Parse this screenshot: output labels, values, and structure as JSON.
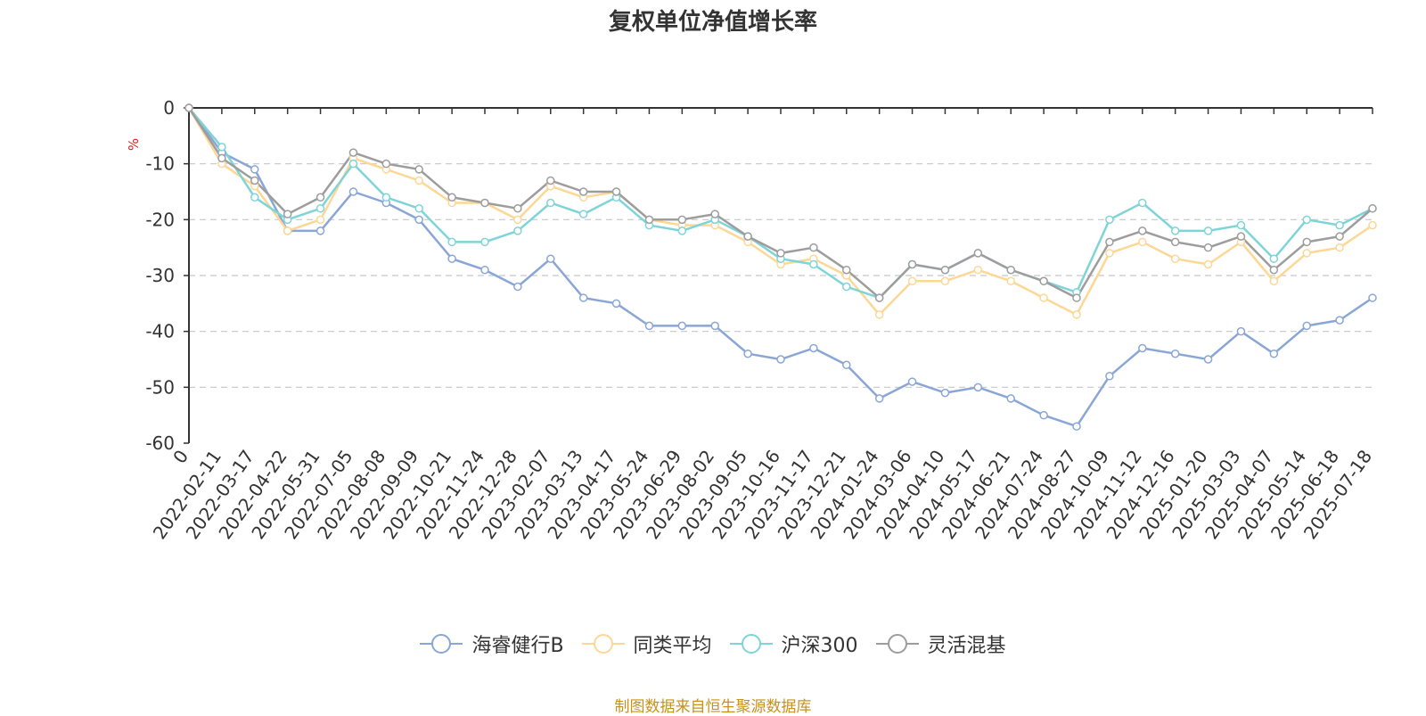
{
  "chart_data": {
    "type": "line",
    "title": "复权单位净值增长率",
    "ylabel": "%",
    "ylim": [
      -60,
      0
    ],
    "yticks": [
      0,
      -10,
      -20,
      -30,
      -40,
      -50,
      -60
    ],
    "grid": true,
    "legend_position": "bottom",
    "x": [
      "0",
      "2022-02-11",
      "2022-03-17",
      "2022-04-22",
      "2022-05-31",
      "2022-07-05",
      "2022-08-08",
      "2022-09-09",
      "2022-10-21",
      "2022-11-24",
      "2022-12-28",
      "2023-02-07",
      "2023-03-13",
      "2023-04-17",
      "2023-05-24",
      "2023-06-29",
      "2023-08-02",
      "2023-09-05",
      "2023-10-16",
      "2023-11-17",
      "2023-12-21",
      "2024-01-24",
      "2024-03-06",
      "2024-04-10",
      "2024-05-17",
      "2024-06-21",
      "2024-07-24",
      "2024-08-27",
      "2024-10-09",
      "2024-11-12",
      "2024-12-16",
      "2025-01-20",
      "2025-03-03",
      "2025-04-07",
      "2025-05-14",
      "2025-06-18",
      "2025-07-18"
    ],
    "series": [
      {
        "name": "海睿健行B",
        "color": "#8aa6d6",
        "values": [
          0,
          -8,
          -11,
          -22,
          -22,
          -15,
          -17,
          -20,
          -27,
          -29,
          -32,
          -27,
          -34,
          -35,
          -39,
          -39,
          -39,
          -44,
          -45,
          -43,
          -46,
          -52,
          -49,
          -51,
          -50,
          -52,
          -55,
          -57,
          -48,
          -43,
          -44,
          -45,
          -40,
          -44,
          -39,
          -38,
          -34
        ]
      },
      {
        "name": "同类平均",
        "color": "#fcd795",
        "values": [
          0,
          -10,
          -14,
          -22,
          -20,
          -9,
          -11,
          -13,
          -17,
          -17,
          -20,
          -14,
          -16,
          -15,
          -20,
          -21,
          -21,
          -24,
          -28,
          -27,
          -30,
          -37,
          -31,
          -31,
          -29,
          -31,
          -34,
          -37,
          -26,
          -24,
          -27,
          -28,
          -24,
          -31,
          -26,
          -25,
          -21
        ]
      },
      {
        "name": "沪深300",
        "color": "#7fd4d8",
        "values": [
          0,
          -7,
          -16,
          -20,
          -18,
          -10,
          -16,
          -18,
          -24,
          -24,
          -22,
          -17,
          -19,
          -16,
          -21,
          -22,
          -20,
          -23,
          -27,
          -28,
          -32,
          -34,
          -28,
          -29,
          -26,
          -29,
          -31,
          -33,
          -20,
          -17,
          -22,
          -22,
          -21,
          -27,
          -20,
          -21,
          -18
        ]
      },
      {
        "name": "灵活混基",
        "color": "#9d9d9d",
        "values": [
          0,
          -9,
          -13,
          -19,
          -16,
          -8,
          -10,
          -11,
          -16,
          -17,
          -18,
          -13,
          -15,
          -15,
          -20,
          -20,
          -19,
          -23,
          -26,
          -25,
          -29,
          -34,
          -28,
          -29,
          -26,
          -29,
          -31,
          -34,
          -24,
          -22,
          -24,
          -25,
          -23,
          -29,
          -24,
          -23,
          -18
        ]
      }
    ]
  },
  "footer": "制图数据来自恒生聚源数据库"
}
